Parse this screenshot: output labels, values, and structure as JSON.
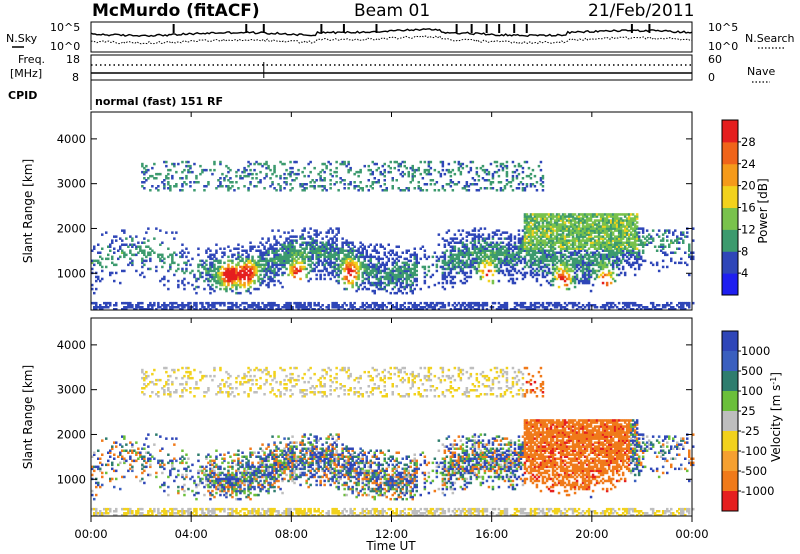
{
  "header": {
    "station": "McMurdo (fitACF)",
    "beam": "Beam 01",
    "date": "21/Feb/2011"
  },
  "noise_panel": {
    "left_label": "N.Sky",
    "right_label": "N.Search",
    "scale_left": [
      "10^5",
      "10^0"
    ],
    "scale_right": [
      "10^5",
      "10^0"
    ]
  },
  "freq_panel": {
    "left_label_line1": "Freq.",
    "left_label_line2": "[MHz]",
    "left_ticks": [
      "18",
      "8"
    ],
    "right_label": "Nave",
    "right_ticks": [
      "60",
      "0"
    ]
  },
  "cpid_panel": {
    "label": "CPID",
    "program": "normal (fast) 151 RF"
  },
  "colors": {
    "blue": "#2f46b8",
    "green": "#3c9a6e",
    "yellow": "#c8d24a",
    "orange": "#f58a1e",
    "red": "#e51f1f",
    "velocity_orange": "#f28a1e"
  },
  "chart_data": [
    {
      "type": "heatmap",
      "name": "power",
      "ylabel": "Slant Range [km]",
      "yticks": [
        1000,
        2000,
        3000,
        4000
      ],
      "ylim": [
        180,
        4600
      ],
      "xlim": [
        0,
        24
      ],
      "colorbar": {
        "label": "Power [dB]",
        "ticks": [
          "4",
          "8",
          "12",
          "16",
          "20",
          "24",
          "28"
        ],
        "colors": [
          "#1f1ff0",
          "#2f46b8",
          "#3c9a6e",
          "#79c24c",
          "#f2d21c",
          "#f59a1a",
          "#f0641a",
          "#e51f1f"
        ]
      },
      "main_band_km": [
        700,
        1700
      ],
      "upper_band_km": [
        2800,
        3500
      ],
      "bright_patches_ut": [
        5.5,
        6.2,
        8.2,
        10.3,
        15.8,
        18.8,
        20.5
      ]
    },
    {
      "type": "heatmap",
      "name": "velocity",
      "ylabel": "Slant Range [km]",
      "yticks": [
        1000,
        2000,
        3000,
        4000
      ],
      "ylim": [
        180,
        4600
      ],
      "xlim": [
        0,
        24
      ],
      "xlabel": "Time UT",
      "xticks": [
        "00:00",
        "04:00",
        "08:00",
        "12:00",
        "16:00",
        "20:00",
        "00:00"
      ],
      "colorbar": {
        "label": "Velocity [m s^-1]",
        "ticks": [
          "1000",
          "500",
          "100",
          "25",
          "-25",
          "-100",
          "-500",
          "-1000"
        ],
        "colors": [
          "#2f46b8",
          "#3a5fbf",
          "#2f7d6e",
          "#6bbf3a",
          "#bebebe",
          "#f2d21c",
          "#f5a030",
          "#f07a1a",
          "#e51f1f"
        ]
      },
      "main_band_km": [
        700,
        1700
      ],
      "orange_region_ut": [
        17.2,
        21.5
      ]
    }
  ]
}
